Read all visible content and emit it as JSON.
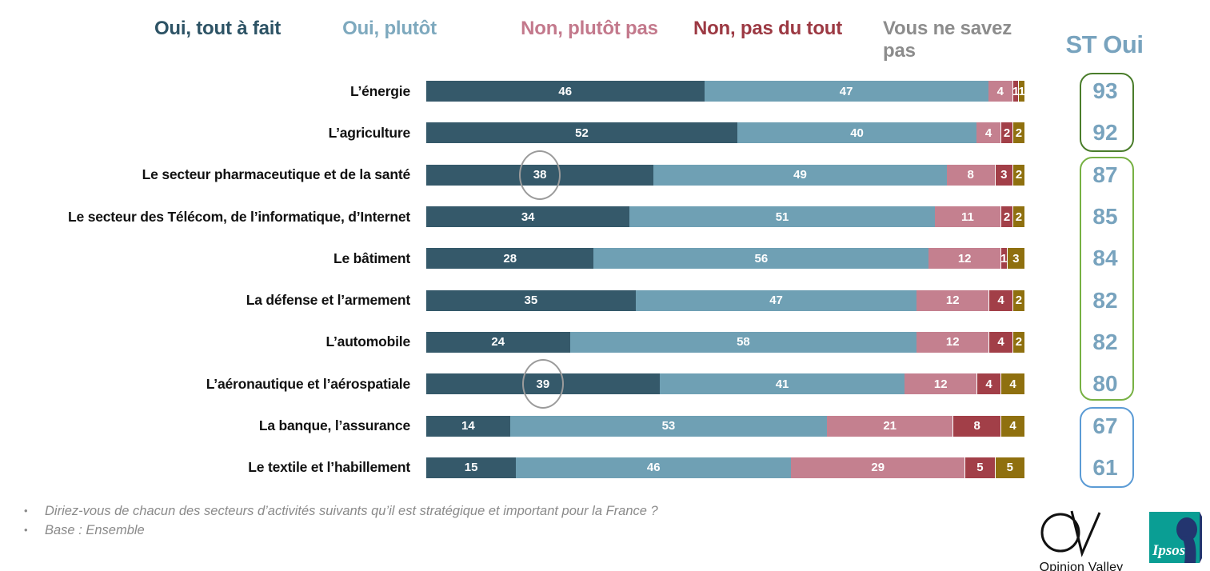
{
  "header": {
    "legend": [
      {
        "label": "Oui, tout à fait",
        "color": "#2D5365"
      },
      {
        "label": "Oui, plutôt",
        "color": "#7EA9BE"
      },
      {
        "label": "Non, plutôt pas",
        "color": "#C3798C"
      },
      {
        "label": "Non, pas du tout",
        "color": "#9C3943"
      },
      {
        "label": "Vous ne savez pas",
        "color": "#8C8C8C"
      }
    ],
    "st_label": "ST Oui",
    "st_color": "#78A3BE"
  },
  "chart_data": {
    "type": "bar",
    "variant": "horizontal-stacked",
    "unit": "percent",
    "xlim": [
      0,
      100
    ],
    "grid": false,
    "series": [
      "Oui, tout à fait",
      "Oui, plutôt",
      "Non, plutôt pas",
      "Non, pas du tout",
      "Vous ne savez pas"
    ],
    "colors": [
      "#35596A",
      "#6FA0B4",
      "#C4808F",
      "#A23F48",
      "#8F700F"
    ],
    "rows": [
      {
        "label": "L’énergie",
        "values": [
          46,
          47,
          4,
          1,
          1
        ],
        "st_oui": 93,
        "circled": false
      },
      {
        "label": "L’agriculture",
        "values": [
          52,
          40,
          4,
          2,
          2
        ],
        "st_oui": 92,
        "circled": false
      },
      {
        "label": "Le secteur pharmaceutique et de la santé",
        "values": [
          38,
          49,
          8,
          3,
          2
        ],
        "st_oui": 87,
        "circled": true
      },
      {
        "label": "Le secteur des Télécom, de l’informatique, d’Internet",
        "values": [
          34,
          51,
          11,
          2,
          2
        ],
        "st_oui": 85,
        "circled": false
      },
      {
        "label": "Le bâtiment",
        "values": [
          28,
          56,
          12,
          1,
          3
        ],
        "st_oui": 84,
        "circled": false
      },
      {
        "label": "La défense et l’armement",
        "values": [
          35,
          47,
          12,
          4,
          2
        ],
        "st_oui": 82,
        "circled": false
      },
      {
        "label": "L’automobile",
        "values": [
          24,
          58,
          12,
          4,
          2
        ],
        "st_oui": 82,
        "circled": false
      },
      {
        "label": "L’aéronautique et l’aérospatiale",
        "values": [
          39,
          41,
          12,
          4,
          4
        ],
        "st_oui": 80,
        "circled": true
      },
      {
        "label": "La banque, l’assurance",
        "values": [
          14,
          53,
          21,
          8,
          4
        ],
        "st_oui": 67,
        "circled": false
      },
      {
        "label": "Le textile et l’habillement",
        "values": [
          15,
          46,
          29,
          5,
          5
        ],
        "st_oui": 61,
        "circled": false
      }
    ],
    "st_groups": [
      {
        "values": [
          93,
          92
        ],
        "border_color": "#4A7D2B"
      },
      {
        "values": [
          87,
          85,
          84,
          82,
          82,
          80
        ],
        "border_color": "#77B143"
      },
      {
        "values": [
          67,
          61
        ],
        "border_color": "#5B9BD5"
      }
    ],
    "annotations": [
      "gray circle around value 38 (secteur pharmaceutique)",
      "gray circle around value 39 (aéronautique)"
    ]
  },
  "footnotes": [
    "Diriez-vous de chacun des secteurs d’activités suivants qu’il est stratégique et important pour la France ?",
    "Base : Ensemble"
  ],
  "logos": {
    "opinion_valley": "Opinion Valley",
    "ipsos": "Ipsos"
  }
}
